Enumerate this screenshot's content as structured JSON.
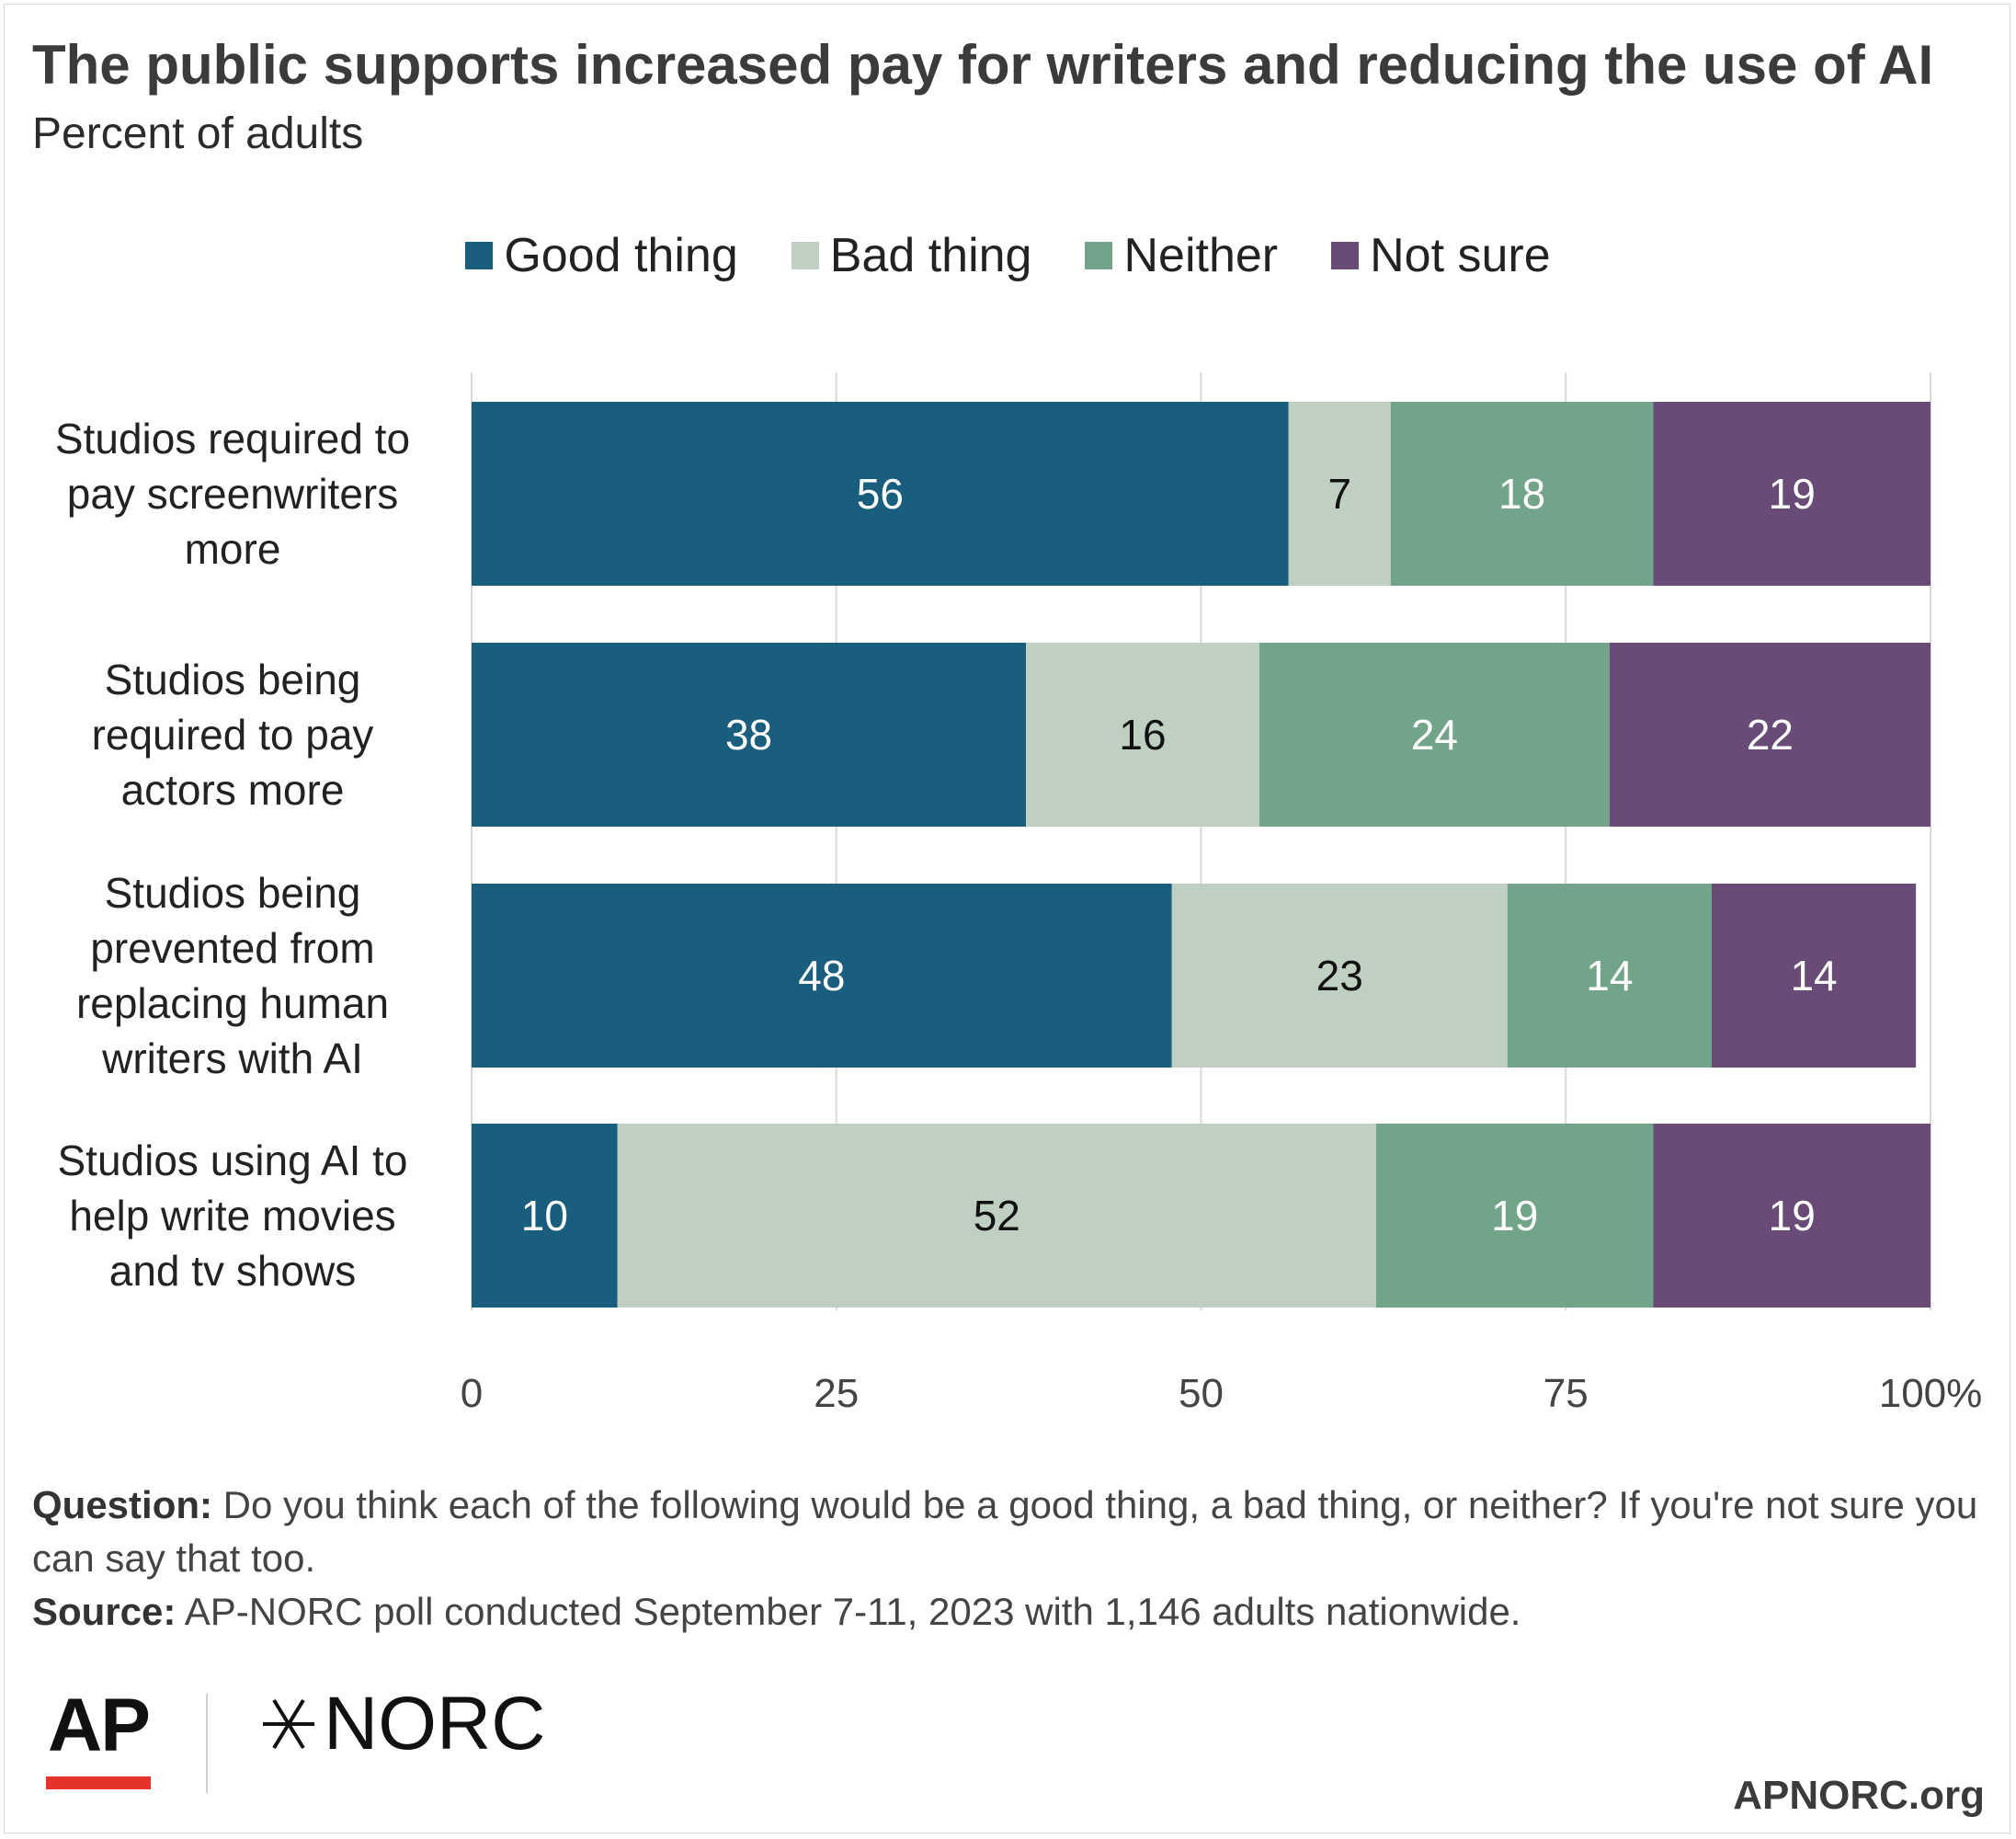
{
  "chart_data": {
    "type": "bar",
    "orientation": "horizontal",
    "stacked": true,
    "title": "The public supports increased pay for writers and reducing the use of AI",
    "subtitle": "Percent of adults",
    "categories": [
      [
        "Studios required to",
        "pay screenwriters",
        "more"
      ],
      [
        "Studios being",
        "required to pay",
        "actors more"
      ],
      [
        "Studios being",
        "prevented from",
        "replacing human",
        "writers with AI"
      ],
      [
        "Studios using AI to",
        "help write movies",
        "and tv shows"
      ]
    ],
    "series": [
      {
        "name": "Good thing",
        "color": "#1a5e7d",
        "label_color": "#ffffff",
        "values": [
          56,
          38,
          48,
          10
        ]
      },
      {
        "name": "Bad thing",
        "color": "#bfd0c3",
        "label_color": "#111111",
        "values": [
          7,
          16,
          23,
          52
        ]
      },
      {
        "name": "Neither",
        "color": "#72a48a",
        "label_color": "#ffffff",
        "values": [
          18,
          24,
          14,
          19
        ]
      },
      {
        "name": "Not sure",
        "color": "#684b76",
        "label_color": "#ffffff",
        "values": [
          19,
          22,
          14,
          19
        ]
      }
    ],
    "xlim": [
      0,
      100
    ],
    "xticks": [
      0,
      25,
      50,
      75,
      100
    ],
    "xtick_labels": [
      "0",
      "25",
      "50",
      "75",
      "100%"
    ],
    "grid": true,
    "legend": "top-center"
  },
  "notes": {
    "question_label": "Question:",
    "question_text": "Do you think each of the following would be a good thing, a bad thing, or neither? If you're not sure you can say that too.",
    "source_label": "Source:",
    "source_text": "AP-NORC poll conducted September 7-11, 2023 with 1,146 adults nationwide."
  },
  "footer": {
    "logo_ap": "AP",
    "logo_norc": "NORC",
    "url": "APNORC.org"
  }
}
